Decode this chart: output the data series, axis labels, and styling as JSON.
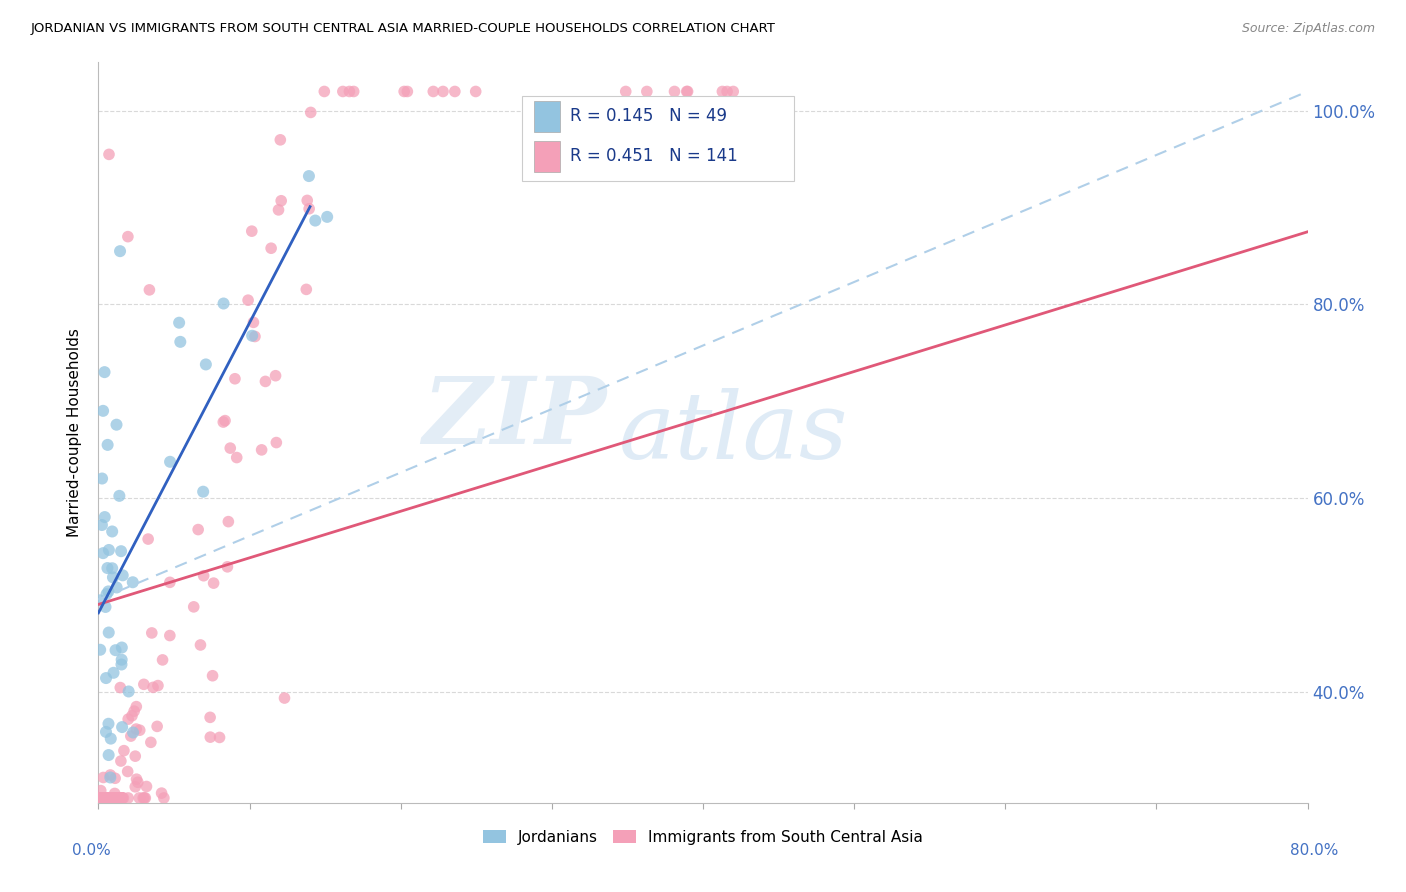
{
  "title": "JORDANIAN VS IMMIGRANTS FROM SOUTH CENTRAL ASIA MARRIED-COUPLE HOUSEHOLDS CORRELATION CHART",
  "source": "Source: ZipAtlas.com",
  "ylabel": "Married-couple Households",
  "legend1_label": "Jordanians",
  "legend2_label": "Immigrants from South Central Asia",
  "R1": 0.145,
  "N1": 49,
  "R2": 0.451,
  "N2": 141,
  "color_blue": "#93c4e0",
  "color_pink": "#f4a0b8",
  "color_trend_blue_dash": "#b0cfe8",
  "color_trend_pink": "#e05878",
  "color_trend_blue_solid": "#3060c0",
  "watermark_zip": "ZIP",
  "watermark_atlas": "atlas",
  "xmin": 0.0,
  "xmax": 0.8,
  "ymin": 0.285,
  "ymax": 1.05,
  "ylabel_tick_vals": [
    0.4,
    0.6,
    0.8,
    1.0
  ],
  "trend1_x0": 0.0,
  "trend1_y0": 0.495,
  "trend1_x1": 0.8,
  "trend1_y1": 1.02,
  "trend2_x0": 0.0,
  "trend2_y0": 0.49,
  "trend2_x1": 0.8,
  "trend2_y1": 0.875,
  "seed": 123
}
